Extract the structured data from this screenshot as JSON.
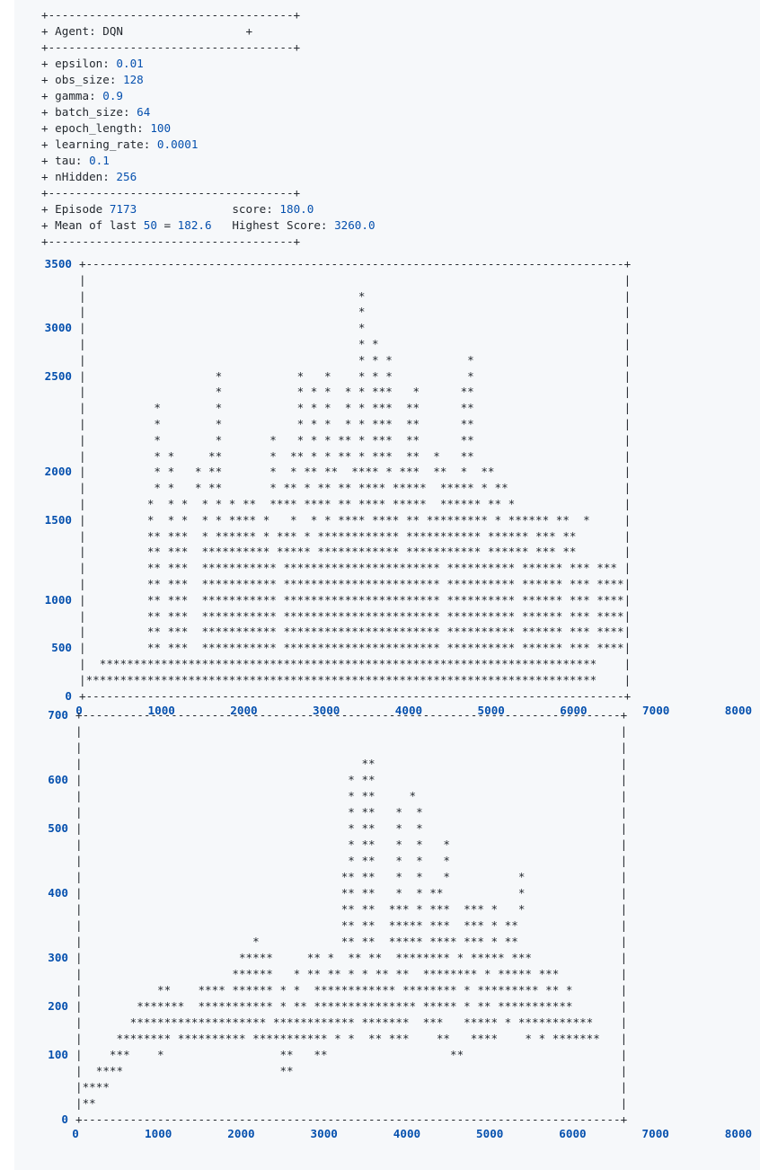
{
  "header": {
    "border": "+------------------------------------+",
    "agent_line": "+ Agent: DQN                  +"
  },
  "params": [
    {
      "label": "+ epsilon: ",
      "value": "0.01"
    },
    {
      "label": "+ obs_size: ",
      "value": "128"
    },
    {
      "label": "+ gamma: ",
      "value": "0.9"
    },
    {
      "label": "+ batch_size: ",
      "value": "64"
    },
    {
      "label": "+ epoch_length: ",
      "value": "100"
    },
    {
      "label": "+ learning_rate: ",
      "value": "0.0001"
    },
    {
      "label": "+ tau: ",
      "value": "0.1"
    },
    {
      "label": "+ nHidden: ",
      "value": "256"
    }
  ],
  "status": {
    "episode_label": "+ Episode ",
    "episode": "7173",
    "score_label": "score: ",
    "score": "180.0",
    "mean_label": "+ Mean of last ",
    "mean_n": "50",
    "mean_eq": " = ",
    "mean_value": "182.6",
    "highest_label": "Highest Score: ",
    "highest_value": "3260.0"
  },
  "colors": {
    "number": "#0550ae",
    "text": "#24292f",
    "background": "#f6f8fa"
  },
  "plot1": {
    "y_labels": [
      "3500",
      "",
      "",
      "",
      "3000",
      "",
      "",
      "",
      "2500",
      "",
      "",
      "",
      "",
      "",
      "2000",
      "",
      "",
      "",
      "1500",
      "",
      "",
      "",
      "",
      "1000",
      "",
      "",
      "",
      "500",
      "",
      "",
      "0"
    ],
    "x_labels": [
      "0",
      "1000",
      "2000",
      "3000",
      "4000",
      "5000",
      "6000",
      "7000",
      "8000"
    ],
    "rows": [
      "+-------------------------------------------------------------------------------+",
      "|                                                                               |",
      "|                                        *                                      |",
      "|                                        *                                      |",
      "|                                        *                                      |",
      "|                                        * *                                    |",
      "|                                        * * *           *                      |",
      "|                   *           *   *    * * *           *                      |",
      "|                   *           * * *  * * ***   *      **                      |",
      "|          *        *           * * *  * * ***  **      **                      |",
      "|          *        *           * * *  * * ***  **      **                      |",
      "|          *        *       *   * * * ** * ***  **      **                      |",
      "|          * *     **       *  ** * * ** * ***  **  *   **                      |",
      "|          * *   * **       *  * ** **  **** * ***  **  *  **                   |",
      "|          * *   * **       * ** * ** ** **** *****  ***** * **                 |",
      "|         *  * *  * * * **  **** **** ** **** *****  ****** ** *                |",
      "|         *  * *  * * **** *   *  * * **** **** ** ********* * ****** **  *     |",
      "|         ** ***  * ****** * *** * ************ *********** ****** *** **       |",
      "|         ** ***  ********** ***** ************ *********** ****** *** **       |",
      "|         ** ***  *********** *********************** ********** ****** *** *** |",
      "|         ** ***  *********** *********************** ********** ****** *** ****|",
      "|         ** ***  *********** *********************** ********** ****** *** ****|",
      "|         ** ***  *********** *********************** ********** ****** *** ****|",
      "|         ** ***  *********** *********************** ********** ****** *** ****|",
      "|         ** ***  *********** *********************** ********** ****** *** ****|",
      "|  *************************************************************************    |",
      "|***************************************************************************    |",
      "+-------------------------------------------------------------------------------+"
    ]
  },
  "plot2": {
    "y_labels": [
      "700",
      "",
      "",
      "",
      "600",
      "",
      "",
      "500",
      "",
      "",
      "",
      "400",
      "",
      "",
      "",
      "300",
      "",
      "",
      "200",
      "",
      "",
      "100",
      "",
      "",
      "",
      "0"
    ],
    "x_labels": [
      "0",
      "1000",
      "2000",
      "3000",
      "4000",
      "5000",
      "6000",
      "7000",
      "8000"
    ],
    "rows": [
      "+-------------------------------------------------------------------------------+",
      "|                                                                               |",
      "|                                                                               |",
      "|                                         **                                    |",
      "|                                       * **                                    |",
      "|                                       * **     *                              |",
      "|                                       * **   *  *                             |",
      "|                                       * **   *  *                             |",
      "|                                       * **   *  *   *                         |",
      "|                                       * **   *  *   *                         |",
      "|                                      ** **   *  *   *          *              |",
      "|                                      ** **   *  * **           *              |",
      "|                                      ** **  *** * ***  *** *   *              |",
      "|                                      ** **  ***** ***  *** * **               |",
      "|                         *            ** **  ***** **** *** * **               |",
      "|                       *****     ** *  ** **  ******** * ***** ***             |",
      "|                      ******   * ** ** * * ** **  ******** * ***** ***         |",
      "|           **    **** ****** * *  ************ ******** * ********* ** *       |",
      "|        *******  *********** * ** *************** ***** * ** ***********       |",
      "|       ******************** ************ *******  ***   ***** * ***********    |",
      "|     ******** ********** *********** * *  ** ***    **   ****    * * *******   |",
      "|    ***    *                 **   **                  **                       |",
      "|  ****                       **                                                |",
      "|****                                                                           |",
      "|**                                                                             |",
      "+-------------------------------------------------------------------------------+"
    ]
  }
}
